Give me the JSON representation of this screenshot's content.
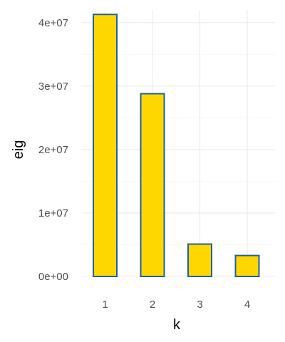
{
  "chart_data": {
    "type": "bar",
    "title": "",
    "xlabel": "k",
    "ylabel": "eig",
    "categories": [
      "1",
      "2",
      "3",
      "4"
    ],
    "values": [
      41300000,
      28800000,
      5100000,
      3300000
    ],
    "ylim": [
      0,
      42000000
    ],
    "yticks": [
      0,
      10000000,
      20000000,
      30000000,
      40000000
    ],
    "ytick_labels": [
      "0e+00",
      "1e+07",
      "2e+07",
      "3e+07",
      "4e+07"
    ],
    "grid": true,
    "legend": "none",
    "bar_fill": "#FFD700",
    "bar_stroke": "#1F5FA5"
  }
}
